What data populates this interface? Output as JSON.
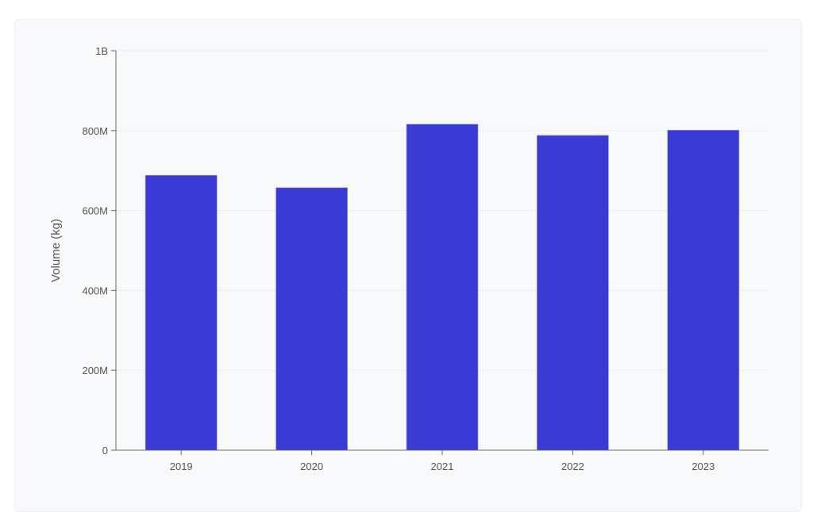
{
  "chart_data": {
    "type": "bar",
    "categories": [
      "2019",
      "2020",
      "2021",
      "2022",
      "2023"
    ],
    "values": [
      688000000,
      657000000,
      816000000,
      788000000,
      801000000
    ],
    "title": "",
    "xlabel": "",
    "ylabel": "Volume (kg)",
    "ylim": [
      0,
      1000000000
    ],
    "yticks": [
      0,
      200000000,
      400000000,
      600000000,
      800000000,
      1000000000
    ],
    "ytick_labels": [
      "0",
      "200M",
      "400M",
      "600M",
      "800M",
      "1B"
    ],
    "grid": true,
    "bar_color": "#3a3ad4"
  }
}
